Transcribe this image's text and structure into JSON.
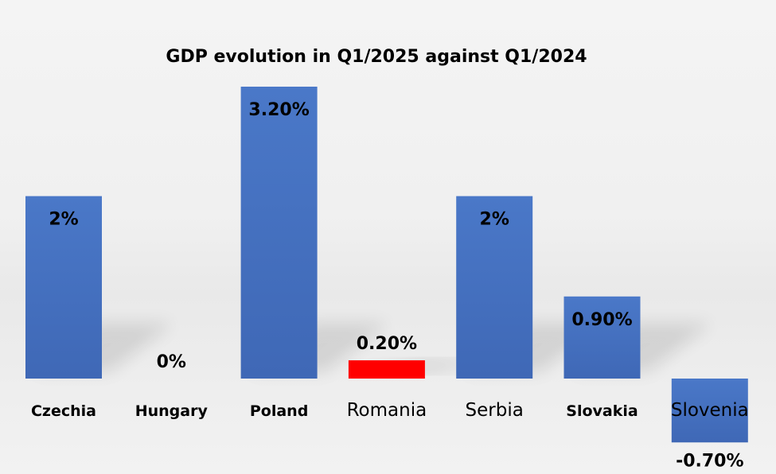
{
  "chart_data": {
    "type": "bar",
    "title": "GDP evolution in Q1/2025 against Q1/2024",
    "xlabel": "",
    "ylabel": "",
    "categories": [
      "Czechia",
      "Hungary",
      "Poland",
      "Romania",
      "Serbia",
      "Slovakia",
      "Slovenia"
    ],
    "values": [
      2.0,
      0.0,
      3.2,
      0.2,
      2.0,
      0.9,
      -0.7
    ],
    "data_labels": [
      "2%",
      "0%",
      "3.20%",
      "0.20%",
      "2%",
      "0.90%",
      "-0.70%"
    ],
    "ylim": [
      -0.7,
      3.2
    ],
    "grid": false,
    "legend": "none",
    "bar_color": "#4472c4",
    "highlight_color": "#ff0000",
    "highlight_category": "Romania",
    "emphasized_label_categories": [
      "Romania",
      "Serbia",
      "Slovenia"
    ]
  }
}
